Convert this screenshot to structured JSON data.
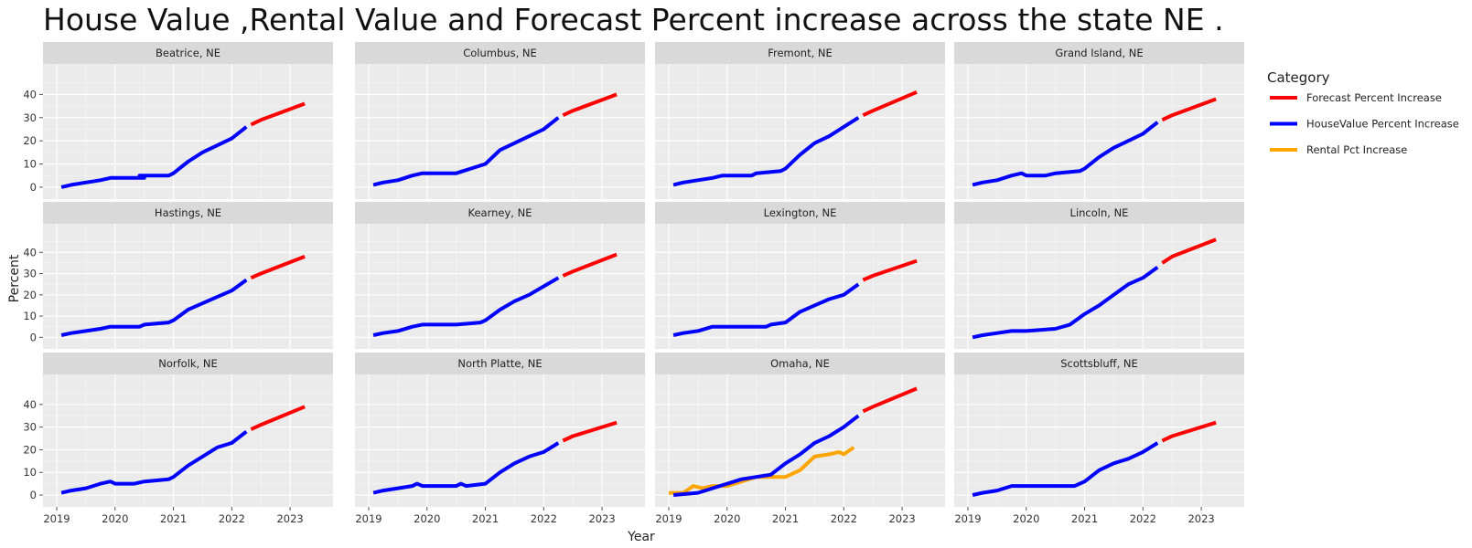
{
  "chart_data": {
    "type": "line",
    "title": "House Value ,Rental Value and Forecast Percent increase across the state NE .",
    "xlabel": "Year",
    "ylabel": "Percent",
    "xlim": [
      2019.0,
      2023.5
    ],
    "ylim": [
      -2,
      50
    ],
    "x_ticks": [
      2019,
      2020,
      2021,
      2022,
      2023
    ],
    "y_ticks": [
      0,
      10,
      20,
      30,
      40
    ],
    "grid": true,
    "facet_rows": 3,
    "facet_cols": 4,
    "legend": {
      "title": "Category",
      "placement": "right",
      "entries": [
        {
          "name": "Forecast Percent Increase",
          "color": "#ff0000"
        },
        {
          "name": "HouseValue Percent Increase",
          "color": "#0000ff"
        },
        {
          "name": "Rental Pct Increase",
          "color": "#ffa500"
        }
      ]
    },
    "panels": [
      {
        "name": "Beatrice, NE",
        "house": [
          [
            2019.08,
            0
          ],
          [
            2019.25,
            1
          ],
          [
            2019.5,
            2
          ],
          [
            2019.75,
            3
          ],
          [
            2019.92,
            4
          ],
          [
            2020.5,
            4
          ],
          [
            2020.42,
            5
          ],
          [
            2020.92,
            5
          ],
          [
            2021.0,
            6
          ],
          [
            2021.25,
            11
          ],
          [
            2021.5,
            15
          ],
          [
            2021.75,
            18
          ],
          [
            2022.0,
            21
          ],
          [
            2022.25,
            26
          ]
        ],
        "forecast": [
          [
            2022.33,
            27
          ],
          [
            2022.5,
            29
          ],
          [
            2023.25,
            36
          ]
        ],
        "rental": []
      },
      {
        "name": "Columbus, NE",
        "house": [
          [
            2019.08,
            1
          ],
          [
            2019.25,
            2
          ],
          [
            2019.5,
            3
          ],
          [
            2019.75,
            5
          ],
          [
            2019.92,
            6
          ],
          [
            2020.5,
            6
          ],
          [
            2020.75,
            8
          ],
          [
            2021.0,
            10
          ],
          [
            2021.25,
            16
          ],
          [
            2021.5,
            19
          ],
          [
            2021.75,
            22
          ],
          [
            2022.0,
            25
          ],
          [
            2022.25,
            30
          ]
        ],
        "forecast": [
          [
            2022.33,
            31
          ],
          [
            2022.5,
            33
          ],
          [
            2023.25,
            40
          ]
        ],
        "rental": []
      },
      {
        "name": "Fremont, NE",
        "house": [
          [
            2019.08,
            1
          ],
          [
            2019.25,
            2
          ],
          [
            2019.5,
            3
          ],
          [
            2019.75,
            4
          ],
          [
            2019.92,
            5
          ],
          [
            2020.42,
            5
          ],
          [
            2020.5,
            6
          ],
          [
            2020.92,
            7
          ],
          [
            2021.0,
            8
          ],
          [
            2021.25,
            14
          ],
          [
            2021.5,
            19
          ],
          [
            2021.75,
            22
          ],
          [
            2022.0,
            26
          ],
          [
            2022.25,
            30
          ]
        ],
        "forecast": [
          [
            2022.33,
            31
          ],
          [
            2022.5,
            33
          ],
          [
            2023.25,
            41
          ]
        ],
        "rental": []
      },
      {
        "name": "Grand Island, NE",
        "house": [
          [
            2019.08,
            1
          ],
          [
            2019.25,
            2
          ],
          [
            2019.5,
            3
          ],
          [
            2019.75,
            5
          ],
          [
            2019.92,
            6
          ],
          [
            2020.0,
            5
          ],
          [
            2020.33,
            5
          ],
          [
            2020.5,
            6
          ],
          [
            2020.92,
            7
          ],
          [
            2021.0,
            8
          ],
          [
            2021.25,
            13
          ],
          [
            2021.5,
            17
          ],
          [
            2021.75,
            20
          ],
          [
            2022.0,
            23
          ],
          [
            2022.25,
            28
          ]
        ],
        "forecast": [
          [
            2022.33,
            29
          ],
          [
            2022.5,
            31
          ],
          [
            2023.25,
            38
          ]
        ],
        "rental": []
      },
      {
        "name": "Hastings, NE",
        "house": [
          [
            2019.08,
            1
          ],
          [
            2019.25,
            2
          ],
          [
            2019.5,
            3
          ],
          [
            2019.75,
            4
          ],
          [
            2019.92,
            5
          ],
          [
            2020.42,
            5
          ],
          [
            2020.5,
            6
          ],
          [
            2020.92,
            7
          ],
          [
            2021.0,
            8
          ],
          [
            2021.25,
            13
          ],
          [
            2021.5,
            16
          ],
          [
            2021.75,
            19
          ],
          [
            2022.0,
            22
          ],
          [
            2022.25,
            27
          ]
        ],
        "forecast": [
          [
            2022.33,
            28
          ],
          [
            2022.5,
            30
          ],
          [
            2023.25,
            38
          ]
        ],
        "rental": []
      },
      {
        "name": "Kearney, NE",
        "house": [
          [
            2019.08,
            1
          ],
          [
            2019.25,
            2
          ],
          [
            2019.5,
            3
          ],
          [
            2019.75,
            5
          ],
          [
            2019.92,
            6
          ],
          [
            2020.5,
            6
          ],
          [
            2020.92,
            7
          ],
          [
            2021.0,
            8
          ],
          [
            2021.25,
            13
          ],
          [
            2021.5,
            17
          ],
          [
            2021.75,
            20
          ],
          [
            2022.0,
            24
          ],
          [
            2022.25,
            28
          ]
        ],
        "forecast": [
          [
            2022.33,
            29
          ],
          [
            2022.5,
            31
          ],
          [
            2023.25,
            39
          ]
        ],
        "rental": []
      },
      {
        "name": "Lexington, NE",
        "house": [
          [
            2019.08,
            1
          ],
          [
            2019.25,
            2
          ],
          [
            2019.5,
            3
          ],
          [
            2019.75,
            5
          ],
          [
            2020.67,
            5
          ],
          [
            2020.75,
            6
          ],
          [
            2021.0,
            7
          ],
          [
            2021.25,
            12
          ],
          [
            2021.5,
            15
          ],
          [
            2021.75,
            18
          ],
          [
            2022.0,
            20
          ],
          [
            2022.25,
            25
          ]
        ],
        "forecast": [
          [
            2022.33,
            27
          ],
          [
            2022.5,
            29
          ],
          [
            2023.25,
            36
          ]
        ],
        "rental": []
      },
      {
        "name": "Lincoln, NE",
        "house": [
          [
            2019.08,
            0
          ],
          [
            2019.25,
            1
          ],
          [
            2019.5,
            2
          ],
          [
            2019.75,
            3
          ],
          [
            2020.0,
            3
          ],
          [
            2020.5,
            4
          ],
          [
            2020.75,
            6
          ],
          [
            2021.0,
            11
          ],
          [
            2021.25,
            15
          ],
          [
            2021.5,
            20
          ],
          [
            2021.75,
            25
          ],
          [
            2022.0,
            28
          ],
          [
            2022.25,
            33
          ]
        ],
        "forecast": [
          [
            2022.33,
            35
          ],
          [
            2022.5,
            38
          ],
          [
            2023.25,
            46
          ]
        ],
        "rental": []
      },
      {
        "name": "Norfolk, NE",
        "house": [
          [
            2019.08,
            1
          ],
          [
            2019.25,
            2
          ],
          [
            2019.5,
            3
          ],
          [
            2019.75,
            5
          ],
          [
            2019.92,
            6
          ],
          [
            2020.0,
            5
          ],
          [
            2020.33,
            5
          ],
          [
            2020.5,
            6
          ],
          [
            2020.92,
            7
          ],
          [
            2021.0,
            8
          ],
          [
            2021.25,
            13
          ],
          [
            2021.5,
            17
          ],
          [
            2021.75,
            21
          ],
          [
            2022.0,
            23
          ],
          [
            2022.25,
            28
          ]
        ],
        "forecast": [
          [
            2022.33,
            29
          ],
          [
            2022.5,
            31
          ],
          [
            2023.25,
            39
          ]
        ],
        "rental": []
      },
      {
        "name": "North Platte, NE",
        "house": [
          [
            2019.08,
            1
          ],
          [
            2019.25,
            2
          ],
          [
            2019.5,
            3
          ],
          [
            2019.75,
            4
          ],
          [
            2019.83,
            5
          ],
          [
            2019.92,
            4
          ],
          [
            2020.5,
            4
          ],
          [
            2020.58,
            5
          ],
          [
            2020.67,
            4
          ],
          [
            2021.0,
            5
          ],
          [
            2021.25,
            10
          ],
          [
            2021.5,
            14
          ],
          [
            2021.75,
            17
          ],
          [
            2022.0,
            19
          ],
          [
            2022.25,
            23
          ]
        ],
        "forecast": [
          [
            2022.33,
            24
          ],
          [
            2022.5,
            26
          ],
          [
            2023.25,
            32
          ]
        ],
        "rental": []
      },
      {
        "name": "Omaha, NE",
        "house": [
          [
            2019.08,
            0
          ],
          [
            2019.5,
            1
          ],
          [
            2019.75,
            3
          ],
          [
            2020.0,
            5
          ],
          [
            2020.25,
            7
          ],
          [
            2020.5,
            8
          ],
          [
            2020.75,
            9
          ],
          [
            2021.0,
            14
          ],
          [
            2021.25,
            18
          ],
          [
            2021.5,
            23
          ],
          [
            2021.75,
            26
          ],
          [
            2022.0,
            30
          ],
          [
            2022.25,
            35
          ]
        ],
        "forecast": [
          [
            2022.33,
            37
          ],
          [
            2022.5,
            39
          ],
          [
            2023.25,
            47
          ]
        ],
        "rental": [
          [
            2019.0,
            1
          ],
          [
            2019.25,
            1
          ],
          [
            2019.42,
            4
          ],
          [
            2019.58,
            3
          ],
          [
            2019.75,
            4
          ],
          [
            2020.0,
            4
          ],
          [
            2020.25,
            6
          ],
          [
            2020.5,
            8
          ],
          [
            2020.75,
            8
          ],
          [
            2021.0,
            8
          ],
          [
            2021.25,
            11
          ],
          [
            2021.5,
            17
          ],
          [
            2021.75,
            18
          ],
          [
            2021.92,
            19
          ],
          [
            2022.0,
            18
          ],
          [
            2022.17,
            21
          ]
        ]
      },
      {
        "name": "Scottsbluff, NE",
        "house": [
          [
            2019.08,
            0
          ],
          [
            2019.25,
            1
          ],
          [
            2019.5,
            2
          ],
          [
            2019.75,
            4
          ],
          [
            2020.83,
            4
          ],
          [
            2021.0,
            6
          ],
          [
            2021.25,
            11
          ],
          [
            2021.5,
            14
          ],
          [
            2021.75,
            16
          ],
          [
            2022.0,
            19
          ],
          [
            2022.25,
            23
          ]
        ],
        "forecast": [
          [
            2022.33,
            24
          ],
          [
            2022.5,
            26
          ],
          [
            2023.25,
            32
          ]
        ],
        "rental": []
      }
    ]
  }
}
